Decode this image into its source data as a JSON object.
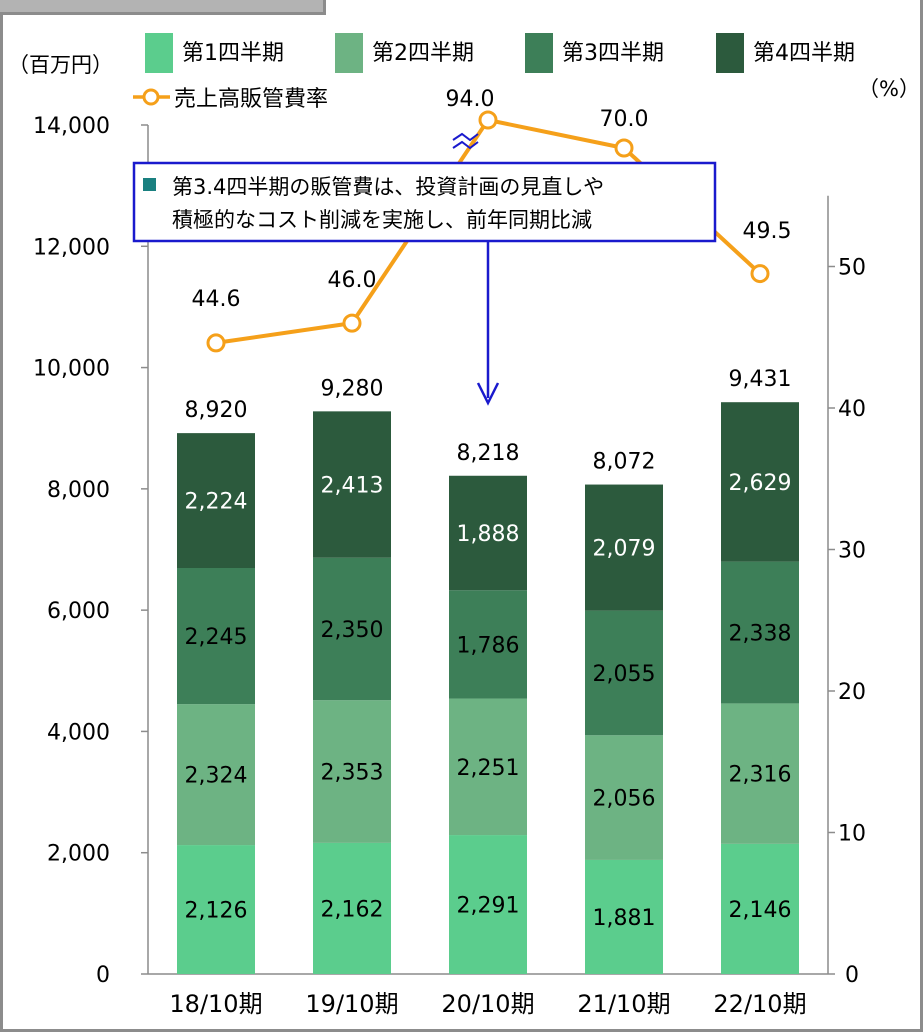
{
  "chart_data": {
    "type": "bar",
    "stacked": true,
    "categories": [
      "18/10期",
      "19/10期",
      "20/10期",
      "21/10期",
      "22/10期"
    ],
    "series": [
      {
        "name": "第1四半期",
        "values": [
          2126,
          2162,
          2291,
          1881,
          2146
        ],
        "color": "#5bcd8d",
        "label_color": "#000000"
      },
      {
        "name": "第2四半期",
        "values": [
          2324,
          2353,
          2251,
          2056,
          2316
        ],
        "color": "#6db383",
        "label_color": "#000000"
      },
      {
        "name": "第3四半期",
        "values": [
          2245,
          2350,
          1786,
          2055,
          2338
        ],
        "color": "#3d7f58",
        "label_color": "#000000"
      },
      {
        "name": "第4四半期",
        "values": [
          2224,
          2413,
          1888,
          2079,
          2629
        ],
        "color": "#2c5a3d",
        "label_color": "#ffffff"
      }
    ],
    "totals": [
      "8,920",
      "9,280",
      "8,218",
      "8,072",
      "9,431"
    ],
    "line": {
      "name": "売上高販管費率",
      "values": [
        44.6,
        46.0,
        94.0,
        70.0,
        49.5
      ],
      "color": "#f5a01a"
    },
    "y_left": {
      "unit": "（百万円）",
      "ticks": [
        0,
        2000,
        4000,
        6000,
        8000,
        10000,
        12000,
        14000
      ],
      "ylim": [
        0,
        14000
      ]
    },
    "y_right": {
      "unit": "（%）",
      "ticks": [
        0,
        10,
        20,
        30,
        40,
        50
      ],
      "ylim": [
        0,
        60
      ]
    },
    "legend_position": "top",
    "grid": false,
    "annotation": {
      "lines": [
        "第3.4四半期の販管費は、投資計画の見直しや",
        "積極的なコスト削減を実施し、前年同期比減"
      ],
      "box_color": "#1a1acd",
      "marker_color": "#1a8080"
    }
  }
}
